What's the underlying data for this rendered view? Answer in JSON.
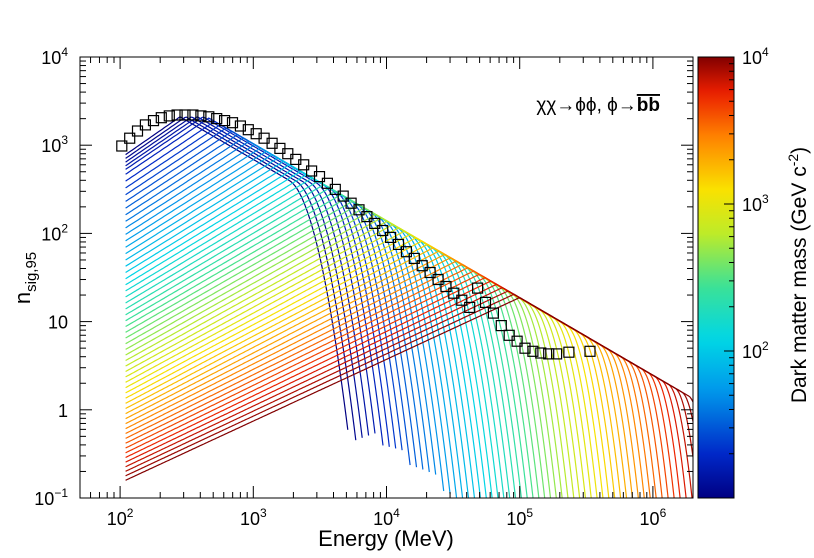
{
  "chart_data": {
    "type": "line",
    "title": "",
    "annotation": {
      "prefix": "χχ→ϕϕ,  ϕ→",
      "bold": "bb",
      "note": "χχ→ϕϕ, ϕ→bb̄"
    },
    "xlabel": "Energy (MeV)",
    "ylabel": {
      "main": "n",
      "subscript": "sig,95"
    },
    "xscale": "log",
    "yscale": "log",
    "xlim": [
      50,
      2000000
    ],
    "ylim": [
      0.1,
      10000
    ],
    "x_ticks": [
      {
        "value": 100,
        "base": "10",
        "exp": "2"
      },
      {
        "value": 1000,
        "base": "10",
        "exp": "3"
      },
      {
        "value": 10000,
        "base": "10",
        "exp": "4"
      },
      {
        "value": 100000,
        "base": "10",
        "exp": "5"
      },
      {
        "value": 1000000,
        "base": "10",
        "exp": "6"
      }
    ],
    "y_ticks": [
      {
        "value": 0.1,
        "base": "10",
        "exp": "−1"
      },
      {
        "value": 1,
        "base": "1",
        "exp": ""
      },
      {
        "value": 10,
        "base": "10",
        "exp": ""
      },
      {
        "value": 100,
        "base": "10",
        "exp": "2"
      },
      {
        "value": 1000,
        "base": "10",
        "exp": "3"
      },
      {
        "value": 10000,
        "base": "10",
        "exp": "4"
      }
    ],
    "colorbar": {
      "label": "Dark matter mass (GeV c",
      "label_exp": "-2",
      "label_end": ")",
      "min": 10,
      "max": 10000,
      "scale": "log",
      "colormap": "rainbow",
      "ticks": [
        {
          "value": 100,
          "base": "10",
          "exp": "2"
        },
        {
          "value": 1000,
          "base": "10",
          "exp": "3"
        },
        {
          "value": 10000,
          "base": "10",
          "exp": "4"
        }
      ]
    },
    "curves": {
      "count": 60,
      "mass_range_gev": [
        10,
        10000
      ],
      "energy_start_mev": 110,
      "note": "one sensitivity curve per dark matter mass, coloured by mass"
    },
    "markers": {
      "name": "envelope (open squares)",
      "x": [
        103,
        118,
        135,
        155,
        178,
        204,
        234,
        268,
        307,
        352,
        404,
        463,
        531,
        609,
        698,
        800,
        917,
        1052,
        1206,
        1383,
        1585,
        1817,
        2084,
        2389,
        2740,
        3141,
        3600,
        4128,
        4732,
        5425,
        6220,
        7130,
        8175,
        9370,
        10740,
        12310,
        14110,
        16180,
        18550,
        21260,
        24380,
        27950,
        32030,
        36730,
        42110,
        48270,
        55340,
        63450,
        72740,
        83390,
        95600,
        109600,
        125600,
        144000,
        165100,
        189300,
        234000,
        337000
      ],
      "y": [
        980,
        1200,
        1450,
        1700,
        1900,
        2050,
        2150,
        2200,
        2200,
        2200,
        2150,
        2100,
        2000,
        1900,
        1800,
        1650,
        1500,
        1350,
        1200,
        1050,
        920,
        800,
        690,
        600,
        510,
        440,
        370,
        315,
        265,
        220,
        185,
        155,
        130,
        108,
        90,
        75,
        62,
        52,
        43,
        36,
        30,
        25,
        21,
        17.5,
        14.5,
        24,
        16.5,
        12.5,
        9,
        7,
        6,
        5,
        4.6,
        4.4,
        4.3,
        4.3,
        4.5,
        4.6
      ]
    }
  }
}
